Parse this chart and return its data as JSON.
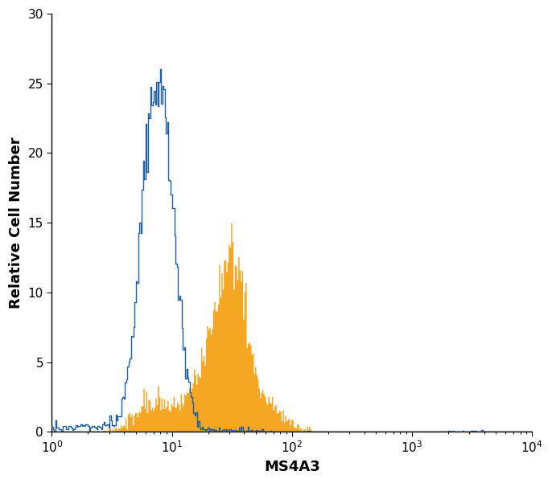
{
  "title": "",
  "xlabel": "MS4A3",
  "ylabel": "Relative Cell Number",
  "xlim_log": [
    0.0,
    4.0
  ],
  "ylim": [
    0,
    30
  ],
  "yticks": [
    0,
    5,
    10,
    15,
    20,
    25,
    30
  ],
  "blue_color": "#2060a0",
  "orange_color": "#f5a623",
  "background_color": "#ffffff",
  "xlabel_fontsize": 13,
  "ylabel_fontsize": 13,
  "tick_fontsize": 11,
  "n_bins": 400
}
